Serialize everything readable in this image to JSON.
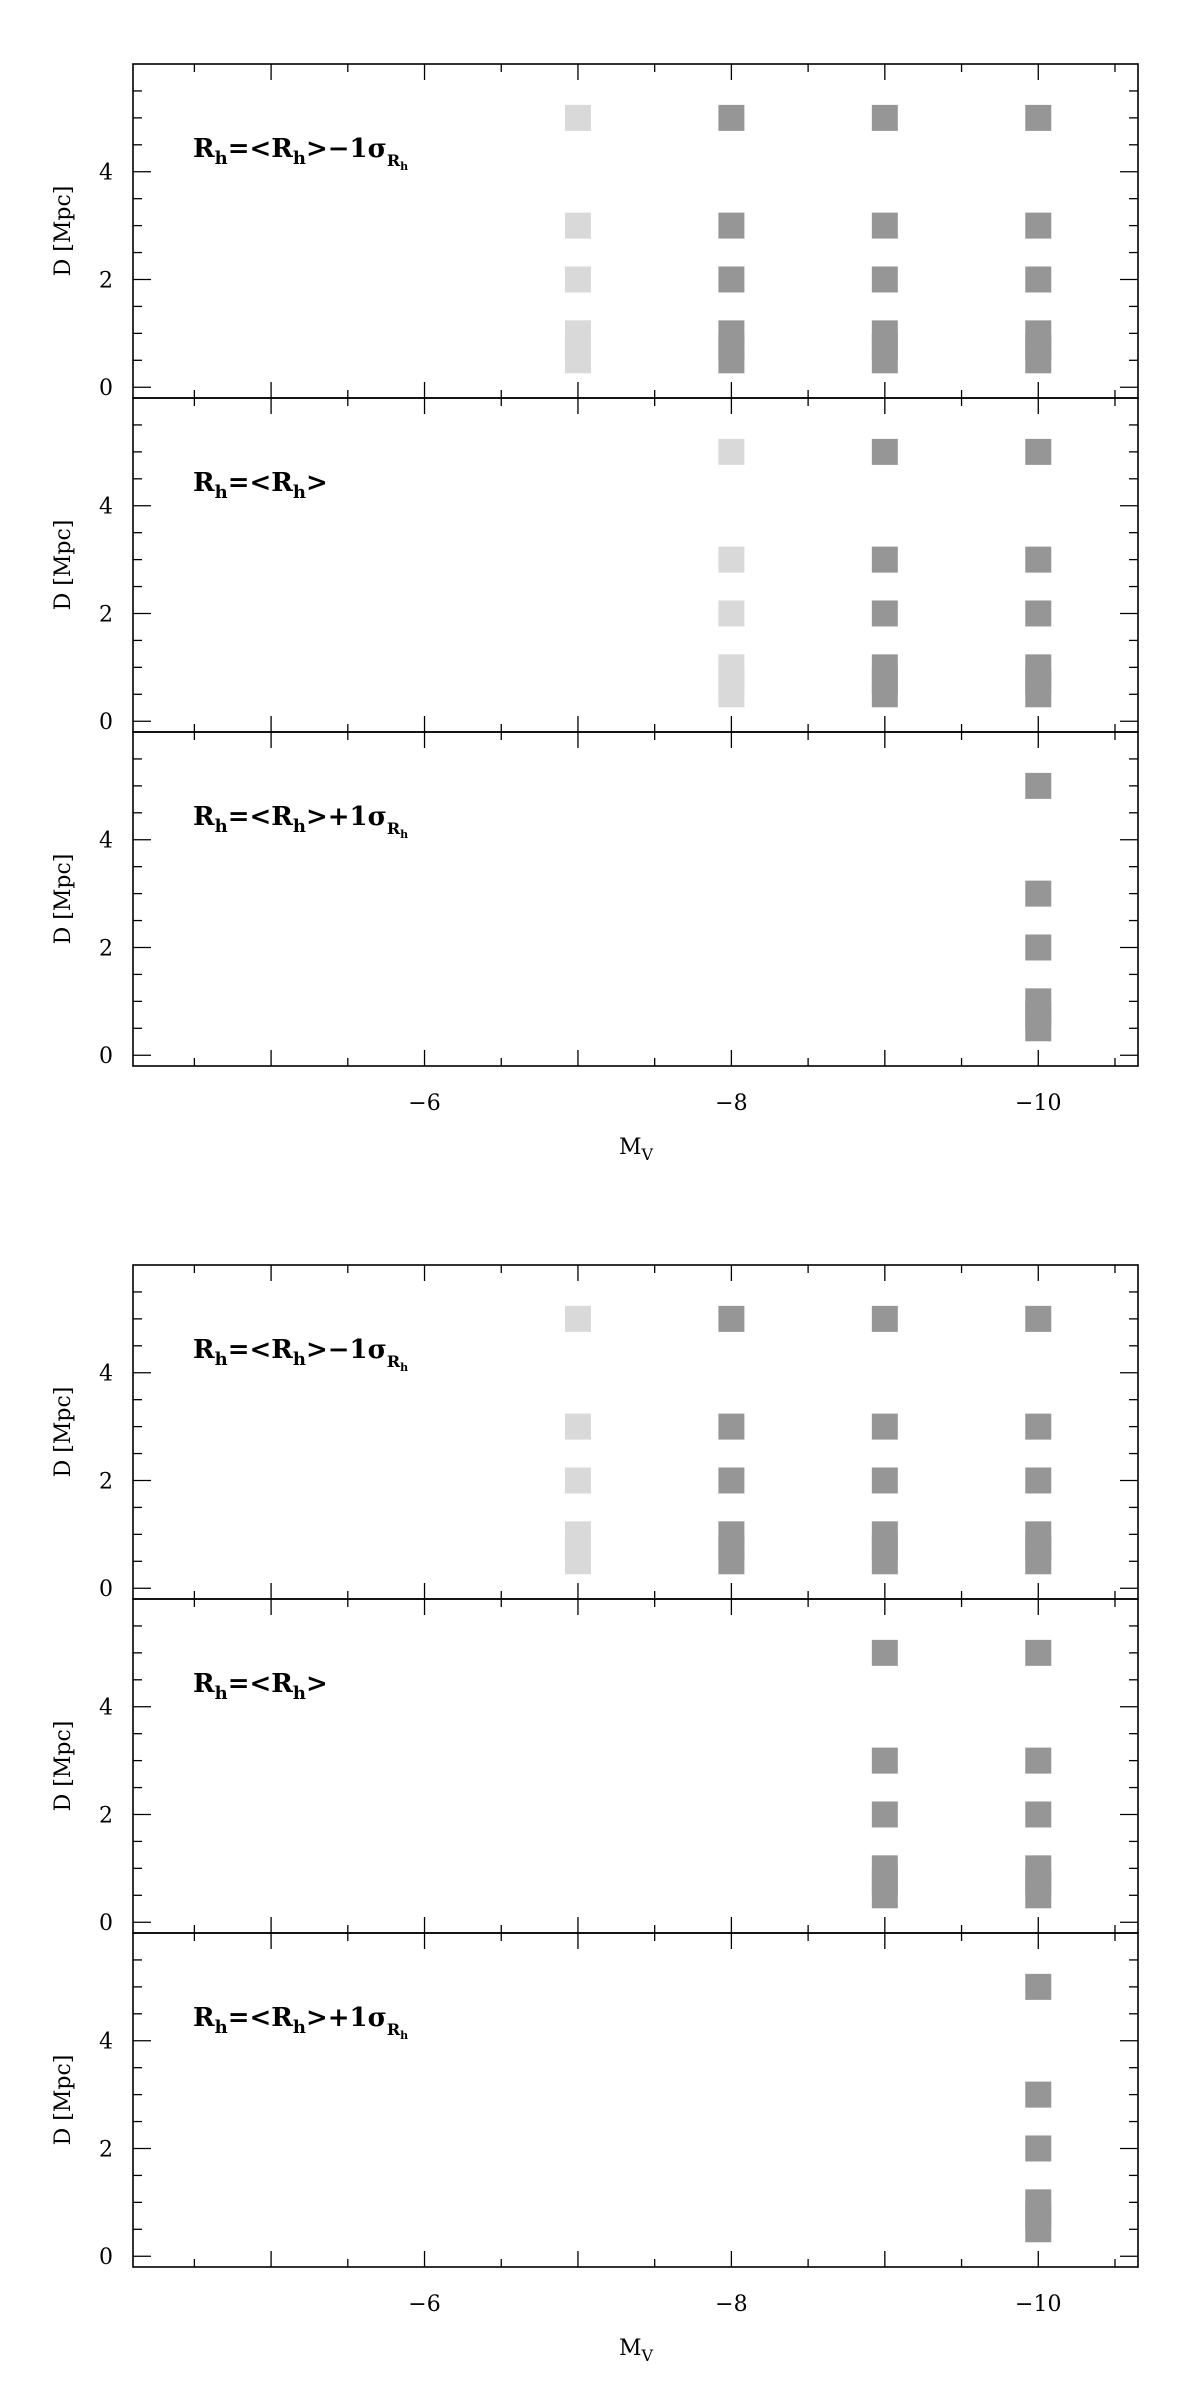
{
  "chart_data": [
    {
      "type": "scatter",
      "figure": 1,
      "xlabel_main": "M",
      "xlabel_sub": "V",
      "xlim": [
        -4.1,
        -10.65
      ],
      "xticks": [
        -6,
        -8,
        -10
      ],
      "xtick_labels": [
        "−6",
        "−8",
        "−10"
      ],
      "panels": [
        {
          "label": {
            "base": "R",
            "sub": "h",
            "eq": "=<",
            "base2": "R",
            "sub2": "h",
            "suffix": ">−1σ",
            "sigma_sub": "R",
            "sigma_subsub": "h"
          },
          "ylabel": "D [Mpc]",
          "ylim": [
            -0.2,
            6.0
          ],
          "yticks": [
            0,
            2,
            4
          ],
          "ytick_labels": [
            "0",
            "2",
            "4"
          ],
          "series": [
            {
              "shade": "light",
              "color": "#d9d9d9",
              "points": [
                [
                  -7,
                  5
                ],
                [
                  -7,
                  3
                ],
                [
                  -7,
                  2
                ],
                [
                  -7,
                  1
                ],
                [
                  -7,
                  0.75
                ],
                [
                  -7,
                  0.5
                ]
              ]
            },
            {
              "shade": "dark",
              "color": "#969696",
              "points": [
                [
                  -8,
                  5
                ],
                [
                  -8,
                  3
                ],
                [
                  -8,
                  2
                ],
                [
                  -8,
                  1
                ],
                [
                  -8,
                  0.75
                ],
                [
                  -8,
                  0.5
                ],
                [
                  -9,
                  5
                ],
                [
                  -9,
                  3
                ],
                [
                  -9,
                  2
                ],
                [
                  -9,
                  1
                ],
                [
                  -9,
                  0.75
                ],
                [
                  -9,
                  0.5
                ],
                [
                  -10,
                  5
                ],
                [
                  -10,
                  3
                ],
                [
                  -10,
                  2
                ],
                [
                  -10,
                  1
                ],
                [
                  -10,
                  0.75
                ],
                [
                  -10,
                  0.5
                ]
              ]
            }
          ]
        },
        {
          "label": {
            "base": "R",
            "sub": "h",
            "eq": "=<",
            "base2": "R",
            "sub2": "h",
            "suffix": ">",
            "sigma_sub": "",
            "sigma_subsub": ""
          },
          "ylabel": "D [Mpc]",
          "ylim": [
            -0.2,
            6.0
          ],
          "yticks": [
            0,
            2,
            4
          ],
          "ytick_labels": [
            "0",
            "2",
            "4"
          ],
          "series": [
            {
              "shade": "light",
              "color": "#d9d9d9",
              "points": [
                [
                  -8,
                  5
                ],
                [
                  -8,
                  3
                ],
                [
                  -8,
                  2
                ],
                [
                  -8,
                  1
                ],
                [
                  -8,
                  0.75
                ],
                [
                  -8,
                  0.5
                ]
              ]
            },
            {
              "shade": "dark",
              "color": "#969696",
              "points": [
                [
                  -9,
                  5
                ],
                [
                  -9,
                  3
                ],
                [
                  -9,
                  2
                ],
                [
                  -9,
                  1
                ],
                [
                  -9,
                  0.75
                ],
                [
                  -9,
                  0.5
                ],
                [
                  -10,
                  5
                ],
                [
                  -10,
                  3
                ],
                [
                  -10,
                  2
                ],
                [
                  -10,
                  1
                ],
                [
                  -10,
                  0.75
                ],
                [
                  -10,
                  0.5
                ]
              ]
            }
          ]
        },
        {
          "label": {
            "base": "R",
            "sub": "h",
            "eq": "=<",
            "base2": "R",
            "sub2": "h",
            "suffix": ">+1σ",
            "sigma_sub": "R",
            "sigma_subsub": "h"
          },
          "ylabel": "D [Mpc]",
          "ylim": [
            -0.2,
            6.0
          ],
          "yticks": [
            0,
            2,
            4
          ],
          "ytick_labels": [
            "0",
            "2",
            "4"
          ],
          "series": [
            {
              "shade": "dark",
              "color": "#969696",
              "points": [
                [
                  -10,
                  5
                ],
                [
                  -10,
                  3
                ],
                [
                  -10,
                  2
                ],
                [
                  -10,
                  1
                ],
                [
                  -10,
                  0.75
                ],
                [
                  -10,
                  0.5
                ]
              ]
            }
          ]
        }
      ]
    },
    {
      "type": "scatter",
      "figure": 2,
      "xlabel_main": "M",
      "xlabel_sub": "V",
      "xlim": [
        -4.1,
        -10.65
      ],
      "xticks": [
        -6,
        -8,
        -10
      ],
      "xtick_labels": [
        "−6",
        "−8",
        "−10"
      ],
      "panels": [
        {
          "label": {
            "base": "R",
            "sub": "h",
            "eq": "=<",
            "base2": "R",
            "sub2": "h",
            "suffix": ">−1σ",
            "sigma_sub": "R",
            "sigma_subsub": "h"
          },
          "ylabel": "D [Mpc]",
          "ylim": [
            -0.2,
            6.0
          ],
          "yticks": [
            0,
            2,
            4
          ],
          "ytick_labels": [
            "0",
            "2",
            "4"
          ],
          "series": [
            {
              "shade": "light",
              "color": "#d9d9d9",
              "points": [
                [
                  -7,
                  5
                ],
                [
                  -7,
                  3
                ],
                [
                  -7,
                  2
                ],
                [
                  -7,
                  1
                ],
                [
                  -7,
                  0.75
                ],
                [
                  -7,
                  0.5
                ]
              ]
            },
            {
              "shade": "dark",
              "color": "#969696",
              "points": [
                [
                  -8,
                  5
                ],
                [
                  -8,
                  3
                ],
                [
                  -8,
                  2
                ],
                [
                  -8,
                  1
                ],
                [
                  -8,
                  0.75
                ],
                [
                  -8,
                  0.5
                ],
                [
                  -9,
                  5
                ],
                [
                  -9,
                  3
                ],
                [
                  -9,
                  2
                ],
                [
                  -9,
                  1
                ],
                [
                  -9,
                  0.75
                ],
                [
                  -9,
                  0.5
                ],
                [
                  -10,
                  5
                ],
                [
                  -10,
                  3
                ],
                [
                  -10,
                  2
                ],
                [
                  -10,
                  1
                ],
                [
                  -10,
                  0.75
                ],
                [
                  -10,
                  0.5
                ]
              ]
            }
          ]
        },
        {
          "label": {
            "base": "R",
            "sub": "h",
            "eq": "=<",
            "base2": "R",
            "sub2": "h",
            "suffix": ">",
            "sigma_sub": "",
            "sigma_subsub": ""
          },
          "ylabel": "D [Mpc]",
          "ylim": [
            -0.2,
            6.0
          ],
          "yticks": [
            0,
            2,
            4
          ],
          "ytick_labels": [
            "0",
            "2",
            "4"
          ],
          "series": [
            {
              "shade": "dark",
              "color": "#969696",
              "points": [
                [
                  -9,
                  5
                ],
                [
                  -9,
                  3
                ],
                [
                  -9,
                  2
                ],
                [
                  -9,
                  1
                ],
                [
                  -9,
                  0.75
                ],
                [
                  -9,
                  0.5
                ],
                [
                  -10,
                  5
                ],
                [
                  -10,
                  3
                ],
                [
                  -10,
                  2
                ],
                [
                  -10,
                  1
                ],
                [
                  -10,
                  0.75
                ],
                [
                  -10,
                  0.5
                ]
              ]
            }
          ]
        },
        {
          "label": {
            "base": "R",
            "sub": "h",
            "eq": "=<",
            "base2": "R",
            "sub2": "h",
            "suffix": ">+1σ",
            "sigma_sub": "R",
            "sigma_subsub": "h"
          },
          "ylabel": "D [Mpc]",
          "ylim": [
            -0.2,
            6.0
          ],
          "yticks": [
            0,
            2,
            4
          ],
          "ytick_labels": [
            "0",
            "2",
            "4"
          ],
          "series": [
            {
              "shade": "dark",
              "color": "#969696",
              "points": [
                [
                  -10,
                  5
                ],
                [
                  -10,
                  3
                ],
                [
                  -10,
                  2
                ],
                [
                  -10,
                  1
                ],
                [
                  -10,
                  0.75
                ],
                [
                  -10,
                  0.5
                ]
              ]
            }
          ]
        }
      ]
    }
  ]
}
